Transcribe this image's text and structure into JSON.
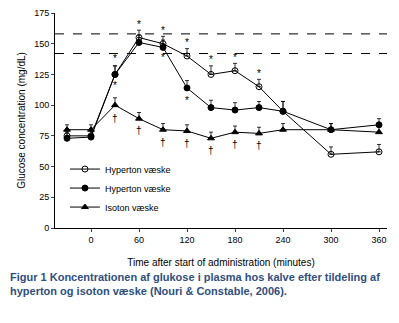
{
  "chart_data": {
    "type": "line",
    "x_label": "Time after start of administration (minutes)",
    "y_label": "Glucose concentration (mg/dL)",
    "caption": "Figur 1 Koncentrationen af glukose i plasma hos kalve efter tildeling af hyperton og isoton væske (Nouri & Constable, 2006).",
    "x": [
      -30,
      0,
      30,
      60,
      90,
      120,
      150,
      180,
      210,
      240,
      300,
      360
    ],
    "series": [
      {
        "name": "Hyperton væske",
        "color": "#000000",
        "marker": "circle-open",
        "line_style": "solid",
        "values": [
          75,
          75,
          125,
          155,
          150,
          140,
          125,
          128,
          115,
          95,
          60,
          62
        ],
        "error": [
          5,
          5,
          7,
          6,
          6,
          6,
          7,
          6,
          6,
          8,
          6,
          6
        ]
      },
      {
        "name": "Hyperton væske",
        "color": "#000000",
        "marker": "circle",
        "line_style": "solid",
        "values": [
          73,
          74,
          125,
          151,
          147,
          114,
          98,
          96,
          98,
          95,
          80,
          84
        ],
        "error": [
          5,
          5,
          7,
          6,
          6,
          6,
          6,
          6,
          5,
          8,
          5,
          5
        ]
      },
      {
        "name": "Isoton væske",
        "color": "#000000",
        "marker": "triangle-up",
        "line_style": "solid",
        "values": [
          80,
          80,
          100,
          89,
          80,
          79,
          73,
          78,
          77,
          80,
          80,
          78
        ],
        "error": [
          4,
          4,
          6,
          5,
          5,
          5,
          5,
          5,
          5,
          5,
          5,
          5
        ]
      }
    ],
    "reference_lines": [
      158,
      142
    ],
    "annotations": [
      {
        "x": 30,
        "y": 138,
        "text": "*"
      },
      {
        "x": 60,
        "y": 166,
        "text": "*"
      },
      {
        "x": 90,
        "y": 161,
        "text": "*"
      },
      {
        "x": 120,
        "y": 151,
        "text": "*"
      },
      {
        "x": 150,
        "y": 137,
        "text": "*"
      },
      {
        "x": 180,
        "y": 139,
        "text": "*"
      },
      {
        "x": 210,
        "y": 126,
        "text": "*"
      },
      {
        "x": 30,
        "y": 116,
        "text": "*"
      },
      {
        "x": 90,
        "y": 139,
        "text": "*"
      },
      {
        "x": 120,
        "y": 104,
        "text": "*"
      },
      {
        "x": 30,
        "y": 89,
        "text": "†"
      },
      {
        "x": 60,
        "y": 79,
        "text": "†"
      },
      {
        "x": 90,
        "y": 70,
        "text": "†"
      },
      {
        "x": 120,
        "y": 69,
        "text": "†"
      },
      {
        "x": 150,
        "y": 63,
        "text": "†"
      },
      {
        "x": 180,
        "y": 68,
        "text": "†"
      },
      {
        "x": 210,
        "y": 67,
        "text": "†"
      }
    ],
    "xlim": [
      -45,
      370
    ],
    "xticks": [
      0,
      60,
      120,
      180,
      240,
      300,
      360
    ],
    "ylim": [
      0,
      175
    ],
    "yticks": [
      0,
      25,
      50,
      75,
      100,
      125,
      150,
      175
    ],
    "grid": false,
    "legend": "lower left"
  }
}
